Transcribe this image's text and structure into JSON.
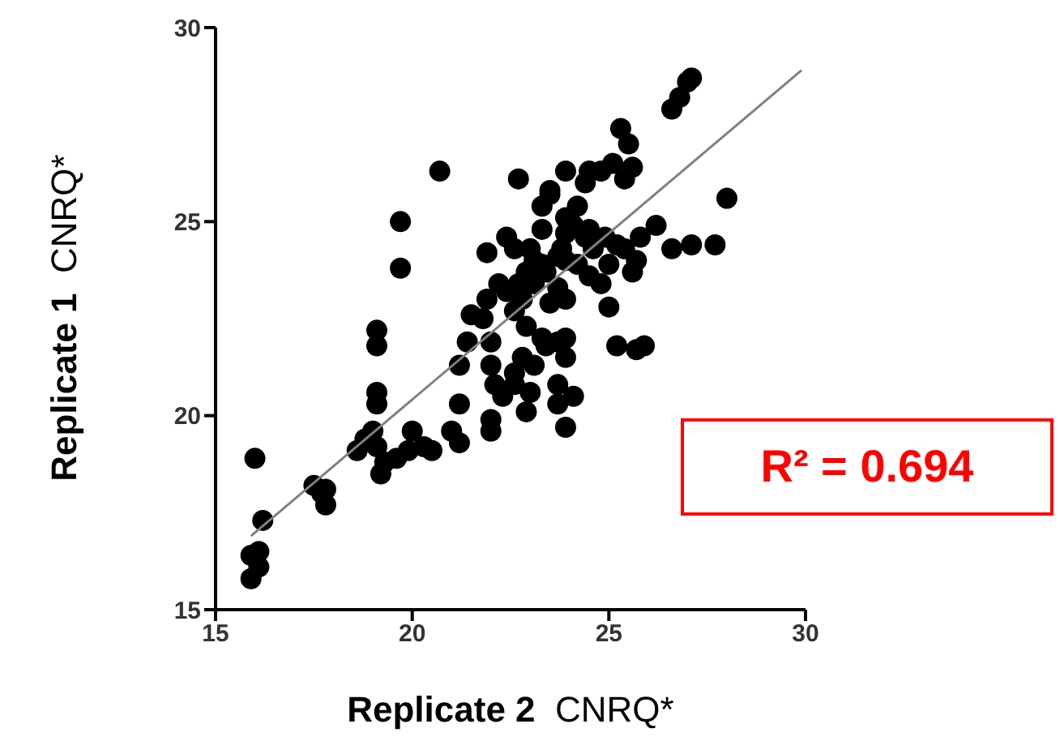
{
  "chart_data": {
    "type": "scatter",
    "xlabel": "Replicate 2  CNRQ*",
    "ylabel": "Replicate 1  CNRQ*",
    "annotations": [
      "R² = 0.694"
    ],
    "xlim": [
      15,
      30
    ],
    "xticks": [
      15,
      20,
      25,
      30
    ],
    "ylim": [
      15,
      30
    ],
    "yticks": [
      15,
      20,
      25,
      30
    ],
    "series": [
      {
        "color": "#000000",
        "marker": "circle",
        "x": [
          15.9,
          16.1,
          15.9,
          16.1,
          16.2,
          16.0,
          17.5,
          17.8,
          17.8,
          17.7,
          18.6,
          18.8,
          19.0,
          19.1,
          19.2,
          19.3,
          19.6,
          19.9,
          20.0,
          20.3,
          20.5,
          21.0,
          21.2,
          21.2,
          19.1,
          19.1,
          19.1,
          19.1,
          19.7,
          19.7,
          20.7,
          22.0,
          22.0,
          22.3,
          22.1,
          22.6,
          22.9,
          23.0,
          22.0,
          22.8,
          22.6,
          23.1,
          23.7,
          24.1,
          23.9,
          23.7,
          21.2,
          21.4,
          21.5,
          21.8,
          21.9,
          22.2,
          22.0,
          22.4,
          22.6,
          22.8,
          22.9,
          23.1,
          23.3,
          23.3,
          23.4,
          23.7,
          23.9,
          23.9,
          23.5,
          23.9,
          21.9,
          22.4,
          22.6,
          22.7,
          23.0,
          23.3,
          23.3,
          23.5,
          23.5,
          23.8,
          23.9,
          23.9,
          24.2,
          24.4,
          24.5,
          24.8,
          25.1,
          25.3,
          25.5,
          25.4,
          25.6,
          24.2,
          24.5,
          24.8,
          25.0,
          25.2,
          25.4,
          25.6,
          25.8,
          25.7,
          26.2,
          26.6,
          27.1,
          27.7,
          28.0,
          25.0,
          25.2,
          25.7,
          25.9,
          23.7,
          23.9,
          23.4,
          23.1,
          22.9,
          22.7,
          23.7,
          24.4,
          24.6,
          24.9,
          24.5,
          24.1,
          23.9,
          26.6,
          26.8,
          27.0,
          27.1
        ],
        "values": [
          15.8,
          16.5,
          16.4,
          16.1,
          17.3,
          18.9,
          18.2,
          18.1,
          17.7,
          18.0,
          19.1,
          19.4,
          19.6,
          19.2,
          18.5,
          18.8,
          18.9,
          19.1,
          19.6,
          19.2,
          19.1,
          19.6,
          19.3,
          20.3,
          20.3,
          20.6,
          21.8,
          22.2,
          23.8,
          25.0,
          26.3,
          19.6,
          19.9,
          20.5,
          20.8,
          20.8,
          20.1,
          20.6,
          21.3,
          21.5,
          21.1,
          21.3,
          20.3,
          20.5,
          19.7,
          20.8,
          21.3,
          21.9,
          22.6,
          22.5,
          23.0,
          23.4,
          21.9,
          23.2,
          22.7,
          23.0,
          22.3,
          23.4,
          23.9,
          22.0,
          21.8,
          21.9,
          22.0,
          21.5,
          22.9,
          23.0,
          24.2,
          24.6,
          24.3,
          26.1,
          24.3,
          24.8,
          25.4,
          25.7,
          25.8,
          24.3,
          24.7,
          25.1,
          25.4,
          26.0,
          26.3,
          26.3,
          26.5,
          27.4,
          27.0,
          26.1,
          26.4,
          23.9,
          23.6,
          23.4,
          23.9,
          24.4,
          24.3,
          23.7,
          24.6,
          24.0,
          24.9,
          24.3,
          24.4,
          24.4,
          25.6,
          22.8,
          21.8,
          21.7,
          21.8,
          24.1,
          24.0,
          23.7,
          24.0,
          23.7,
          23.4,
          23.3,
          24.6,
          24.3,
          24.6,
          24.8,
          24.9,
          26.3,
          27.9,
          28.2,
          28.6,
          28.7
        ]
      },
      {
        "type": "line",
        "marker": "none",
        "color": "#808080",
        "x": [
          15.9,
          29.9
        ],
        "values": [
          16.9,
          28.9
        ]
      }
    ]
  }
}
